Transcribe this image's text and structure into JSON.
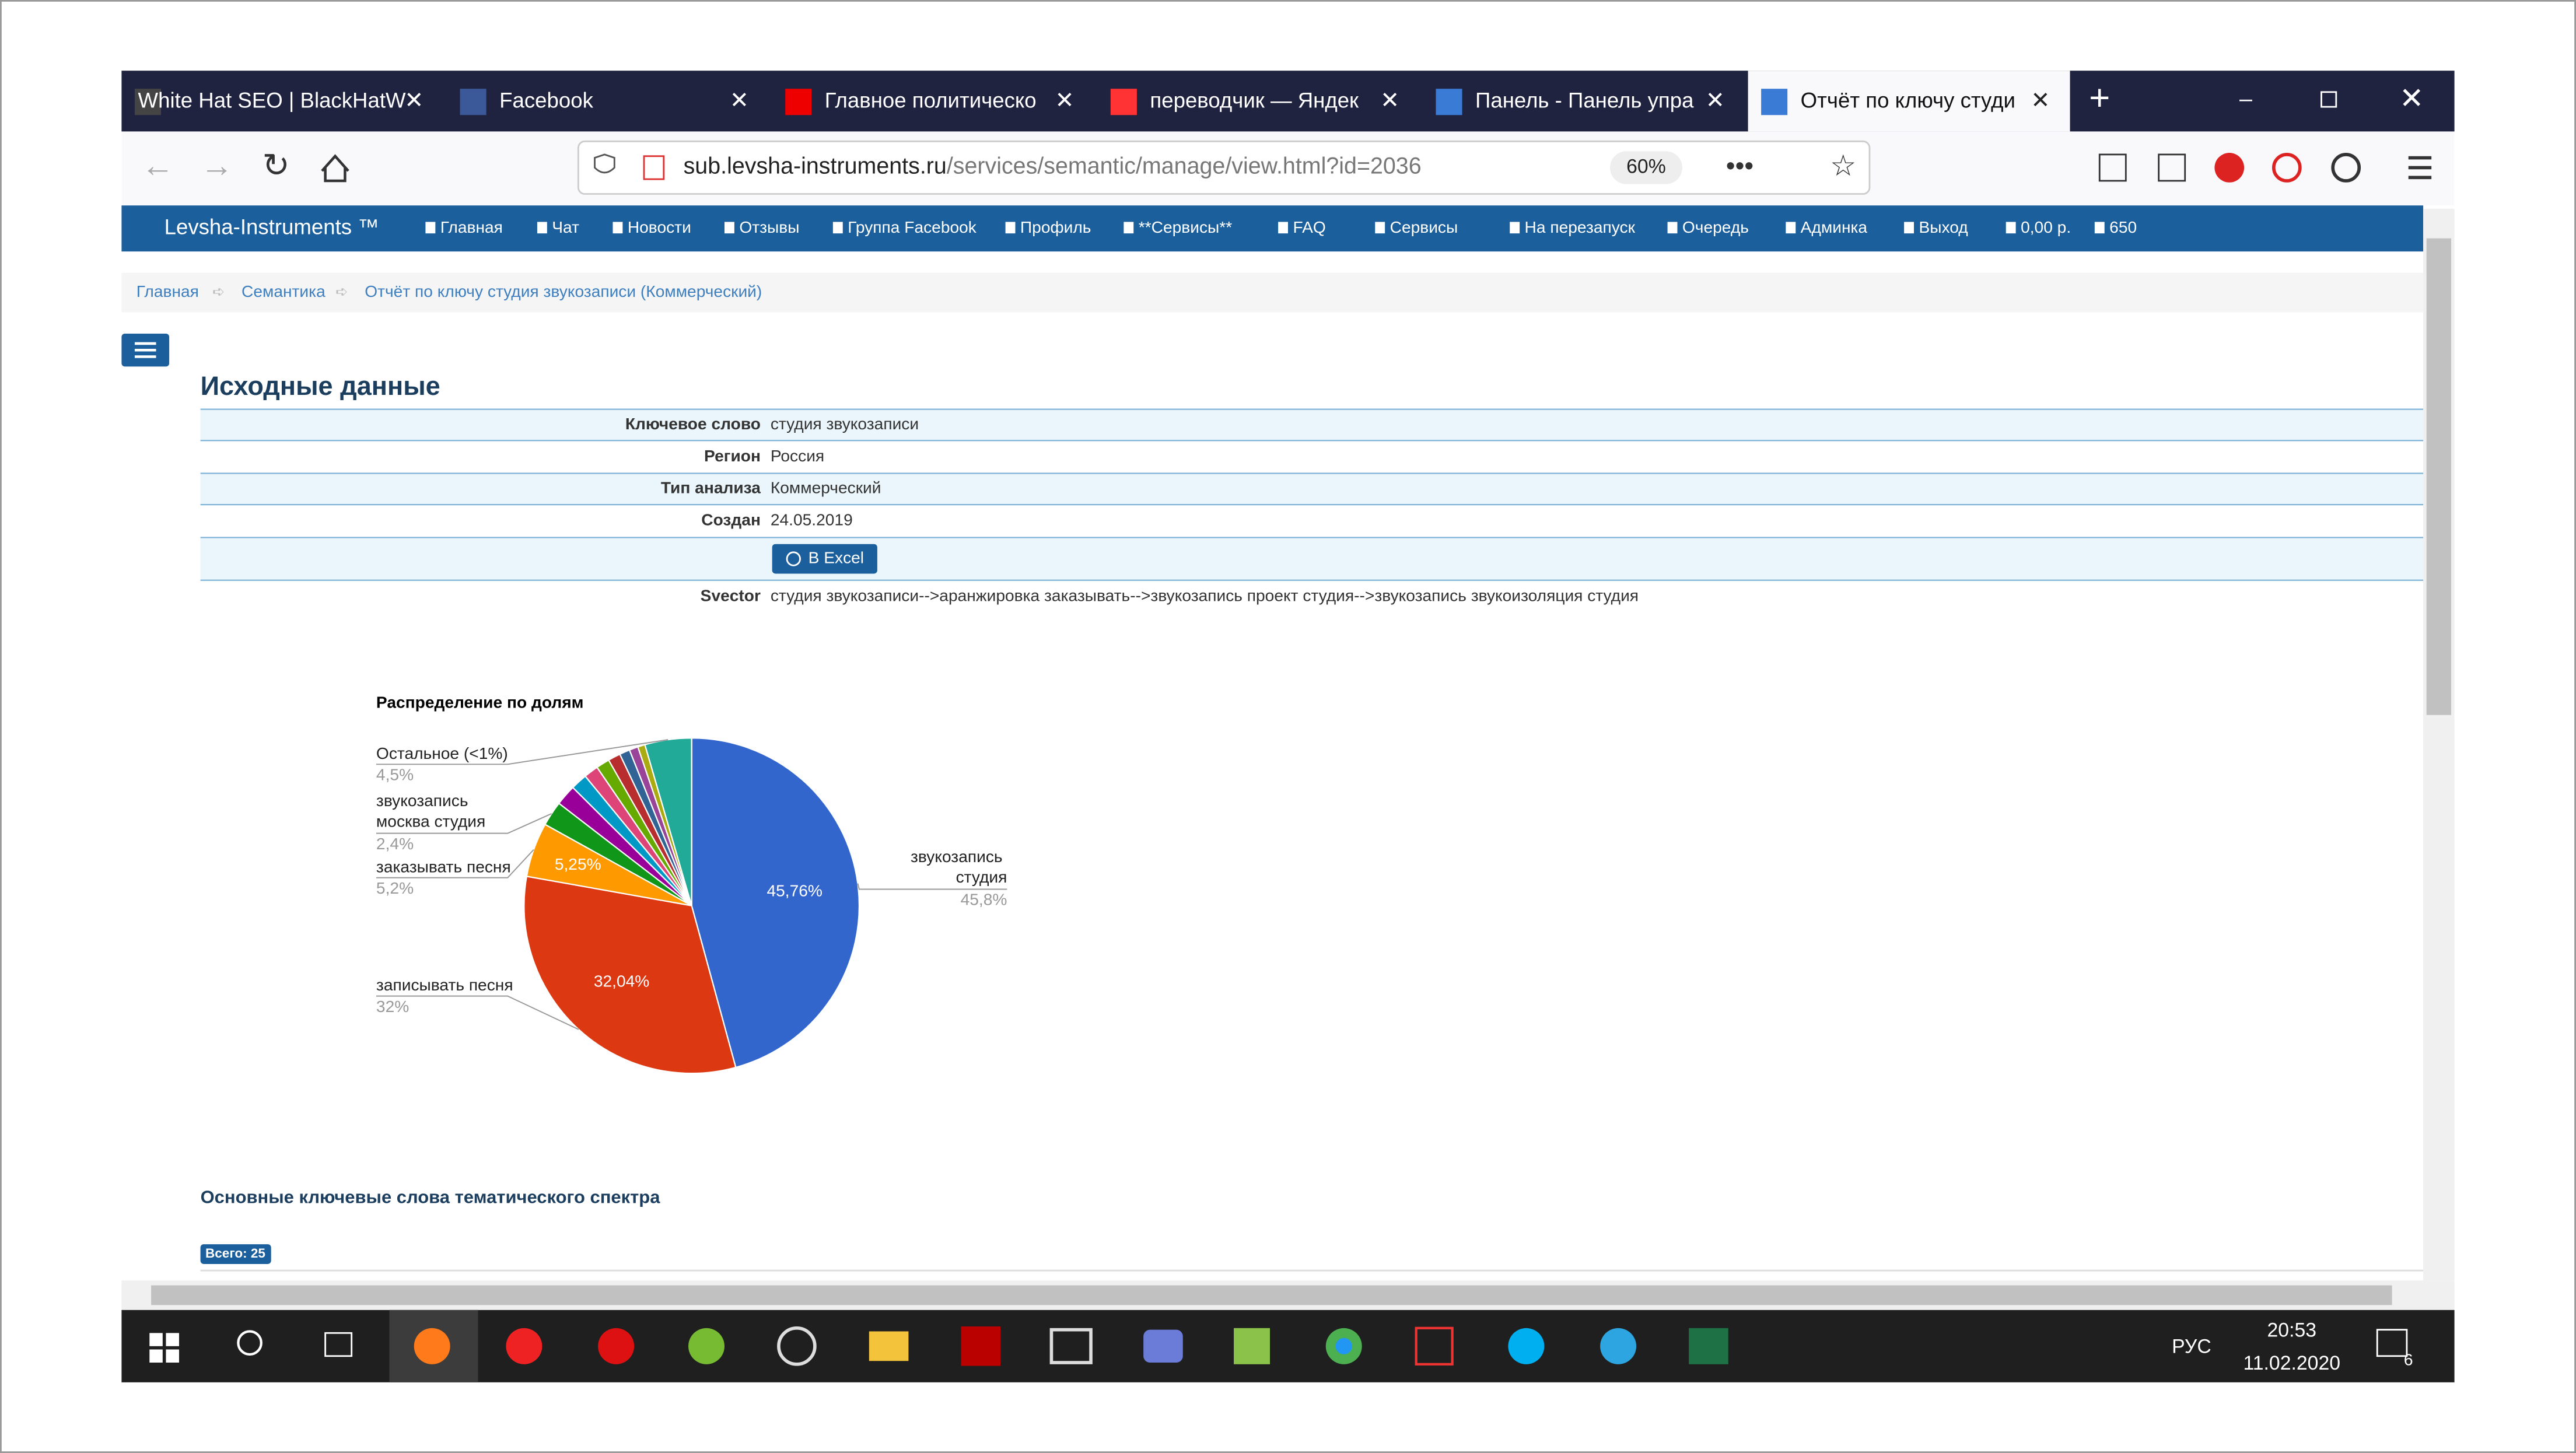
{
  "browser": {
    "tabs": [
      "White Hat SEO | BlackHatW",
      "Facebook",
      "Главное политическо",
      "переводчик — Яндек",
      "Панель - Панель упра",
      "Отчёт по ключу студи"
    ],
    "url_host": "sub.levsha-instruments.ru",
    "url_path": "/services/semantic/manage/view.html?id=2036",
    "zoom": "60%"
  },
  "navbar": {
    "brand": "Levsha-Instruments ™",
    "items": [
      "Главная",
      "Чат",
      "Новости",
      "Отзывы",
      "Группа Facebook",
      "Профиль",
      "**Сервисы**",
      "FAQ",
      "Сервисы",
      "На перезапуск",
      "Очередь",
      "Админка",
      "Выход",
      "0,00 р.",
      "650"
    ]
  },
  "breadcrumbs": [
    "Главная",
    "Семантика",
    "Отчёт по ключу студия звукозаписи (Коммерческий)"
  ],
  "section_title": "Исходные данные",
  "details": [
    {
      "label": "Ключевое слово",
      "value": "студия звукозаписи"
    },
    {
      "label": "Регион",
      "value": "Россия"
    },
    {
      "label": "Тип анализа",
      "value": "Коммерческий"
    },
    {
      "label": "Создан",
      "value": "24.05.2019"
    },
    {
      "button": "В Excel"
    },
    {
      "label": "Svector",
      "value": "студия звукозаписи-->аранжировка заказывать-->звукозапись проект студия-->звукозапись звукоизоляция студия"
    }
  ],
  "chart_data": {
    "type": "pie",
    "title": "Распределение по долям",
    "categories": [
      "звукозапись студия",
      "записывать песня",
      "заказывать песня",
      "звукозапись москва студия",
      null,
      null,
      null,
      null,
      null,
      null,
      null,
      null,
      "Остальное (<1%)"
    ],
    "values": [
      45.76,
      32.04,
      5.25,
      2.4,
      2.0,
      1.6,
      1.4,
      1.3,
      1.2,
      1.0,
      0.85,
      0.7,
      4.5
    ],
    "value_labels": [
      "45,76%",
      "32,04%",
      "5,25%",
      null,
      null,
      null,
      null,
      null,
      null,
      null,
      null,
      null,
      null
    ],
    "legend_value_labels": [
      "45,8%",
      "32%",
      "5,2%",
      "2,4%",
      null,
      null,
      null,
      null,
      null,
      null,
      null,
      null,
      "4,5%"
    ],
    "colors": [
      "#3366cc",
      "#dc3912",
      "#ff9900",
      "#109618",
      "#990099",
      "#0099c6",
      "#dd4477",
      "#66aa00",
      "#b82e2e",
      "#316395",
      "#994499",
      "#aaaa11",
      "#22aa99"
    ]
  },
  "keywords_title": "Основные ключевые слова тематического спектра",
  "total_badge": "Всего: 25",
  "taskbar": {
    "language": "РУС",
    "time": "20:53",
    "date": "11.02.2020",
    "notifications": "6"
  }
}
